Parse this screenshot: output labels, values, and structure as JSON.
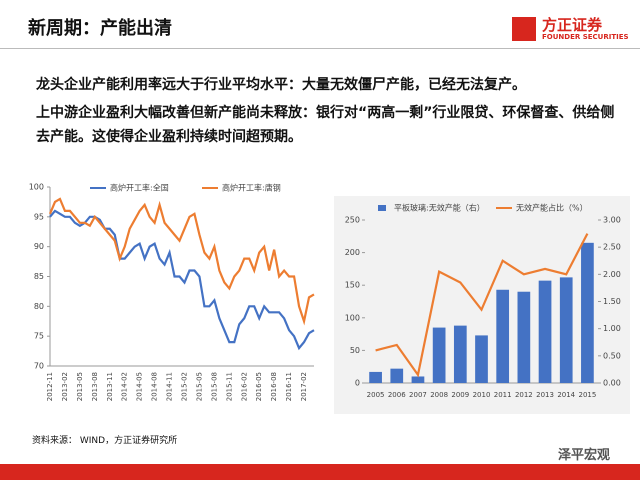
{
  "header": {
    "title": "新周期：产能出清",
    "logo_cn": "方正证券",
    "logo_en": "FOUNDER SECURITIES"
  },
  "bullets": [
    "龙头企业产能利用率远大于行业平均水平：大量无效僵尸产能，已经无法复产。",
    "上中游企业盈利大幅改善但新产能尚未释放：银行对“两高一剩”行业限贷、环保督查、供给侧去产能。这使得企业盈利持续时间超预期。"
  ],
  "source": "资料来源： WIND，方正证券研究所",
  "watermark": "泽平宏观",
  "chart_data": [
    {
      "type": "line",
      "categories": [
        "2012-11",
        null,
        null,
        "2013-02",
        null,
        null,
        "2013-05",
        null,
        null,
        "2013-08",
        null,
        null,
        "2013-11",
        null,
        null,
        "2014-02",
        null,
        null,
        "2014-05",
        null,
        null,
        "2014-08",
        null,
        null,
        "2014-11",
        null,
        null,
        "2015-02",
        null,
        null,
        "2015-05",
        null,
        null,
        "2015-08",
        null,
        null,
        "2015-11",
        null,
        null,
        "2016-02",
        null,
        null,
        "2016-05",
        null,
        null,
        "2016-08",
        null,
        null,
        "2016-11",
        null,
        null,
        "2017-02",
        null,
        null
      ],
      "series": [
        {
          "name": "高炉开工率:全国",
          "color": "#4472c4",
          "values": [
            95,
            96,
            95.5,
            95,
            95,
            94,
            93.5,
            94,
            95,
            95,
            94.5,
            93,
            93,
            92,
            88,
            88,
            89,
            90,
            90.5,
            88,
            90,
            90.5,
            88,
            87,
            89,
            85,
            85,
            84,
            86,
            86,
            85,
            80,
            80,
            81,
            78,
            76,
            74,
            74,
            77,
            78,
            80,
            80,
            78,
            80,
            79,
            79,
            79,
            78,
            76,
            75,
            73,
            74,
            75.5,
            76
          ]
        },
        {
          "name": "高炉开工率:唐钢",
          "color": "#ed7d31",
          "values": [
            95.5,
            97.5,
            98,
            96,
            96,
            95,
            94,
            94,
            93.5,
            95,
            94,
            93,
            92,
            91,
            88,
            90,
            93,
            94.5,
            96,
            97,
            95,
            94,
            97,
            94,
            93,
            92,
            91,
            93,
            95,
            95.5,
            92,
            89,
            88,
            90,
            86,
            84,
            83,
            85,
            86,
            88,
            88,
            86,
            89,
            90,
            86,
            89.5,
            85,
            86,
            85,
            85,
            80,
            77.5,
            81.5,
            82
          ]
        }
      ],
      "ylim": [
        70,
        100
      ],
      "yticks": [
        70,
        75,
        80,
        85,
        90,
        95,
        100
      ],
      "grid": false
    },
    {
      "type": "bar",
      "categories": [
        "2005",
        "2006",
        "2007",
        "2008",
        "2009",
        "2010",
        "2011",
        "2012",
        "2013",
        "2014",
        "2015"
      ],
      "series": [
        {
          "name": "平板玻璃:无效产能（右）",
          "color": "#4472c4",
          "values": [
            17,
            22,
            10,
            85,
            88,
            73,
            143,
            140,
            157,
            162,
            215
          ]
        },
        {
          "name": "无效产能占比（%）",
          "color": "#ed7d31",
          "axis": "y2",
          "values": [
            0.6,
            0.7,
            0.15,
            2.05,
            1.85,
            1.35,
            2.25,
            2.0,
            2.1,
            2.0,
            2.75
          ]
        }
      ],
      "ylim": [
        0,
        250
      ],
      "yticks": [
        0,
        50,
        100,
        150,
        200,
        250
      ],
      "y2lim": [
        0,
        3
      ],
      "y2ticks": [
        {
          "value": 0,
          "label": "0.00"
        },
        {
          "value": 0.5,
          "label": "0.50"
        },
        {
          "value": 1,
          "label": "1.00"
        },
        {
          "value": 1.5,
          "label": "1.50"
        },
        {
          "value": 2,
          "label": "2.00"
        },
        {
          "value": 2.5,
          "label": "2.50"
        },
        {
          "value": 3,
          "label": "3.00"
        }
      ],
      "grid": false
    }
  ]
}
